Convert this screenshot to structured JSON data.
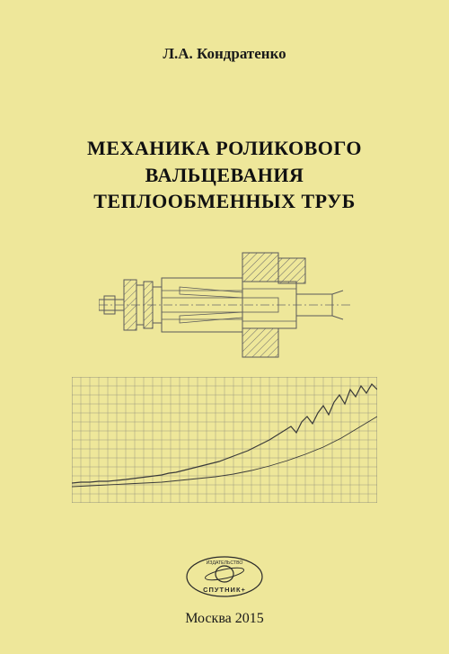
{
  "author": "Л.А. Кондратенко",
  "title_line1": "МЕХАНИКА РОЛИКОВОГО",
  "title_line2": "ВАЛЬЦЕВАНИЯ",
  "title_line3": "ТЕПЛООБМЕННЫХ ТРУБ",
  "publisher": {
    "name_top": "ИЗДАТЕЛЬСТВО",
    "name_bottom": "СПУТНИК+"
  },
  "imprint": "Москва 2015",
  "diagram": {
    "type": "engineering-drawing",
    "stroke_color": "#5a5a5a",
    "stroke_width": 1,
    "hatch_color": "#6a6a6a",
    "centerline_color": "#6a6a6a",
    "background": "#eee79a"
  },
  "chart": {
    "type": "line",
    "background": "#eee79a",
    "grid_color": "#8a8a7a",
    "grid_cols": 34,
    "grid_rows": 14,
    "xlim": [
      0,
      340
    ],
    "ylim": [
      0,
      140
    ],
    "series": [
      {
        "color": "#3a3a3a",
        "width": 1.2,
        "points": [
          [
            0,
            118
          ],
          [
            10,
            117
          ],
          [
            20,
            117
          ],
          [
            30,
            116
          ],
          [
            40,
            116
          ],
          [
            50,
            115
          ],
          [
            60,
            114
          ],
          [
            68,
            113
          ],
          [
            76,
            112
          ],
          [
            84,
            111
          ],
          [
            92,
            110
          ],
          [
            100,
            109
          ],
          [
            108,
            107
          ],
          [
            116,
            106
          ],
          [
            124,
            104
          ],
          [
            132,
            102
          ],
          [
            140,
            100
          ],
          [
            148,
            98
          ],
          [
            156,
            96
          ],
          [
            164,
            94
          ],
          [
            172,
            91
          ],
          [
            180,
            88
          ],
          [
            188,
            85
          ],
          [
            196,
            82
          ],
          [
            204,
            78
          ],
          [
            212,
            74
          ],
          [
            220,
            70
          ],
          [
            228,
            65
          ],
          [
            236,
            60
          ],
          [
            244,
            55
          ],
          [
            250,
            62
          ],
          [
            256,
            50
          ],
          [
            262,
            44
          ],
          [
            268,
            52
          ],
          [
            274,
            40
          ],
          [
            280,
            32
          ],
          [
            286,
            42
          ],
          [
            292,
            28
          ],
          [
            298,
            20
          ],
          [
            304,
            30
          ],
          [
            310,
            14
          ],
          [
            316,
            22
          ],
          [
            322,
            10
          ],
          [
            328,
            18
          ],
          [
            334,
            8
          ],
          [
            340,
            14
          ]
        ]
      },
      {
        "color": "#3a3a3a",
        "width": 0.9,
        "points": [
          [
            0,
            122
          ],
          [
            20,
            121
          ],
          [
            40,
            120
          ],
          [
            60,
            119
          ],
          [
            80,
            118
          ],
          [
            100,
            117
          ],
          [
            120,
            115
          ],
          [
            140,
            113
          ],
          [
            160,
            111
          ],
          [
            180,
            108
          ],
          [
            200,
            104
          ],
          [
            220,
            99
          ],
          [
            240,
            93
          ],
          [
            260,
            86
          ],
          [
            280,
            78
          ],
          [
            300,
            68
          ],
          [
            320,
            56
          ],
          [
            340,
            44
          ]
        ]
      }
    ]
  }
}
